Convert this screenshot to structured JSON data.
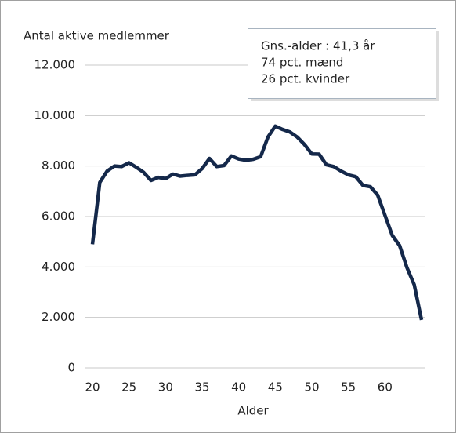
{
  "chart_data": {
    "type": "line",
    "ylabel": "Antal aktive medlemmer",
    "xlabel": "Alder",
    "annotation": [
      "Gns.-alder : 41,3 år",
      "74 pct. mænd",
      "26 pct. kvinder"
    ],
    "x": [
      20,
      21,
      22,
      23,
      24,
      25,
      26,
      27,
      28,
      29,
      30,
      31,
      32,
      33,
      34,
      35,
      36,
      37,
      38,
      39,
      40,
      41,
      42,
      43,
      44,
      45,
      46,
      47,
      48,
      49,
      50,
      51,
      52,
      53,
      54,
      55,
      56,
      57,
      58,
      59,
      60,
      61,
      62,
      63,
      64,
      65
    ],
    "series": [
      {
        "color": "#14284a",
        "values": [
          4900,
          7350,
          7800,
          8000,
          7980,
          8130,
          7950,
          7750,
          7430,
          7550,
          7500,
          7680,
          7600,
          7630,
          7650,
          7900,
          8300,
          7980,
          8020,
          8400,
          8280,
          8230,
          8270,
          8370,
          9150,
          9580,
          9450,
          9350,
          9150,
          8850,
          8480,
          8470,
          8050,
          7980,
          7800,
          7650,
          7580,
          7230,
          7180,
          6850,
          6050,
          5250,
          4850,
          3980,
          3300,
          1900
        ]
      }
    ],
    "xlim": [
      20,
      65
    ],
    "xticks": [
      20,
      25,
      30,
      35,
      40,
      45,
      50,
      55,
      60
    ],
    "ylim": [
      0,
      12000
    ],
    "yticks": [
      0,
      {
        "value": 2000,
        "label": "2.000"
      },
      {
        "value": 4000,
        "label": "4.000"
      },
      {
        "value": 6000,
        "label": "6.000"
      },
      {
        "value": 8000,
        "label": "8.000"
      },
      {
        "value": 10000,
        "label": "10.000"
      },
      {
        "value": 12000,
        "label": "12.000"
      }
    ],
    "grid": true
  }
}
